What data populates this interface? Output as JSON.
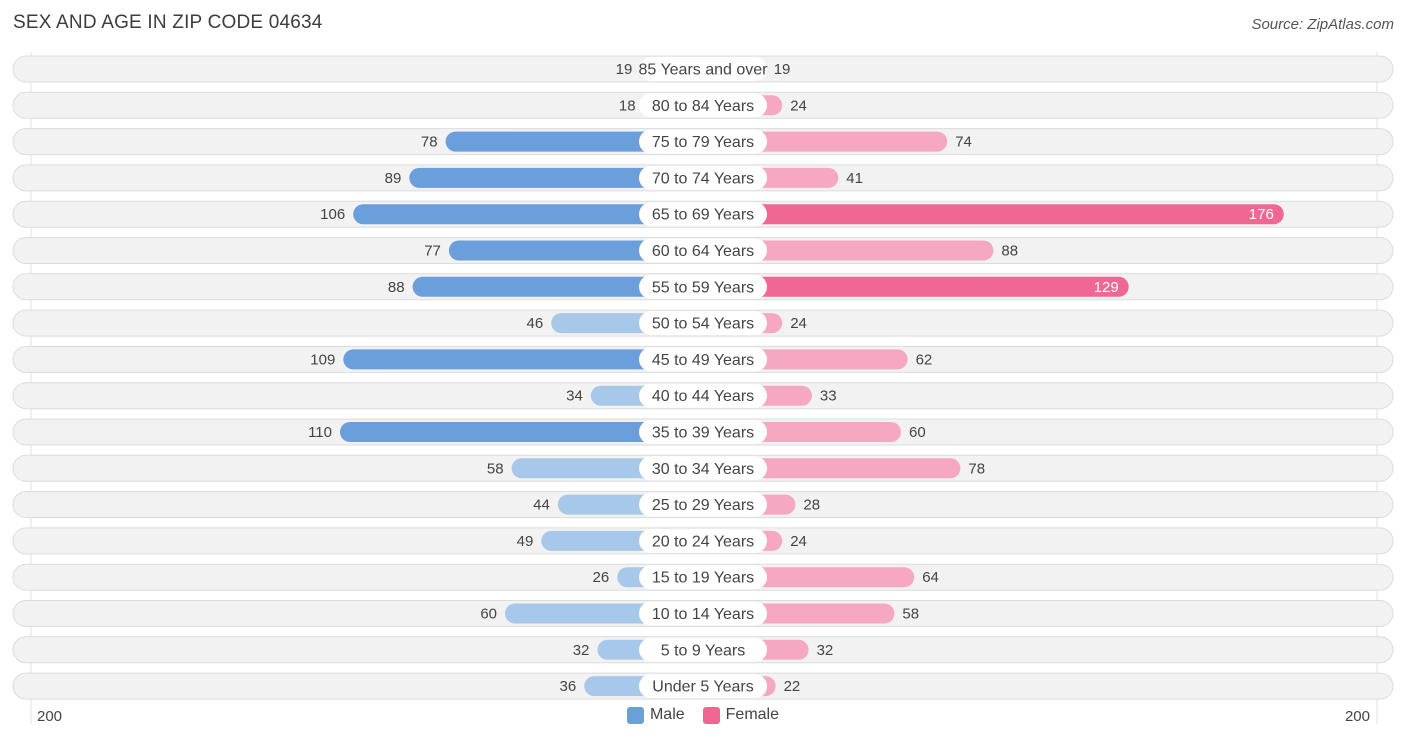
{
  "header": {
    "title": "SEX AND AGE IN ZIP CODE 04634",
    "source": "Source: ZipAtlas.com"
  },
  "colors": {
    "male_light": "#a8c8ea",
    "male_dark": "#6a9fdc",
    "female_light": "#f6a8c2",
    "female_dark": "#f06794",
    "row_bg": "#f2f2f2",
    "row_border": "#dcdcdc"
  },
  "chart_data": {
    "type": "bar",
    "orientation": "horizontal-diverging",
    "categories": [
      "85 Years and over",
      "80 to 84 Years",
      "75 to 79 Years",
      "70 to 74 Years",
      "65 to 69 Years",
      "60 to 64 Years",
      "55 to 59 Years",
      "50 to 54 Years",
      "45 to 49 Years",
      "40 to 44 Years",
      "35 to 39 Years",
      "30 to 34 Years",
      "25 to 29 Years",
      "20 to 24 Years",
      "15 to 19 Years",
      "10 to 14 Years",
      "5 to 9 Years",
      "Under 5 Years"
    ],
    "series": [
      {
        "name": "Male",
        "values": [
          19,
          18,
          78,
          89,
          106,
          77,
          88,
          46,
          109,
          34,
          110,
          58,
          44,
          49,
          26,
          60,
          32,
          36
        ]
      },
      {
        "name": "Female",
        "values": [
          19,
          24,
          74,
          41,
          176,
          88,
          129,
          24,
          62,
          33,
          60,
          78,
          28,
          24,
          64,
          58,
          32,
          22
        ]
      }
    ],
    "axis": {
      "left_label": "200",
      "right_label": "200",
      "max": 200
    },
    "legend": {
      "position": "bottom-center",
      "items": [
        "Male",
        "Female"
      ]
    }
  }
}
